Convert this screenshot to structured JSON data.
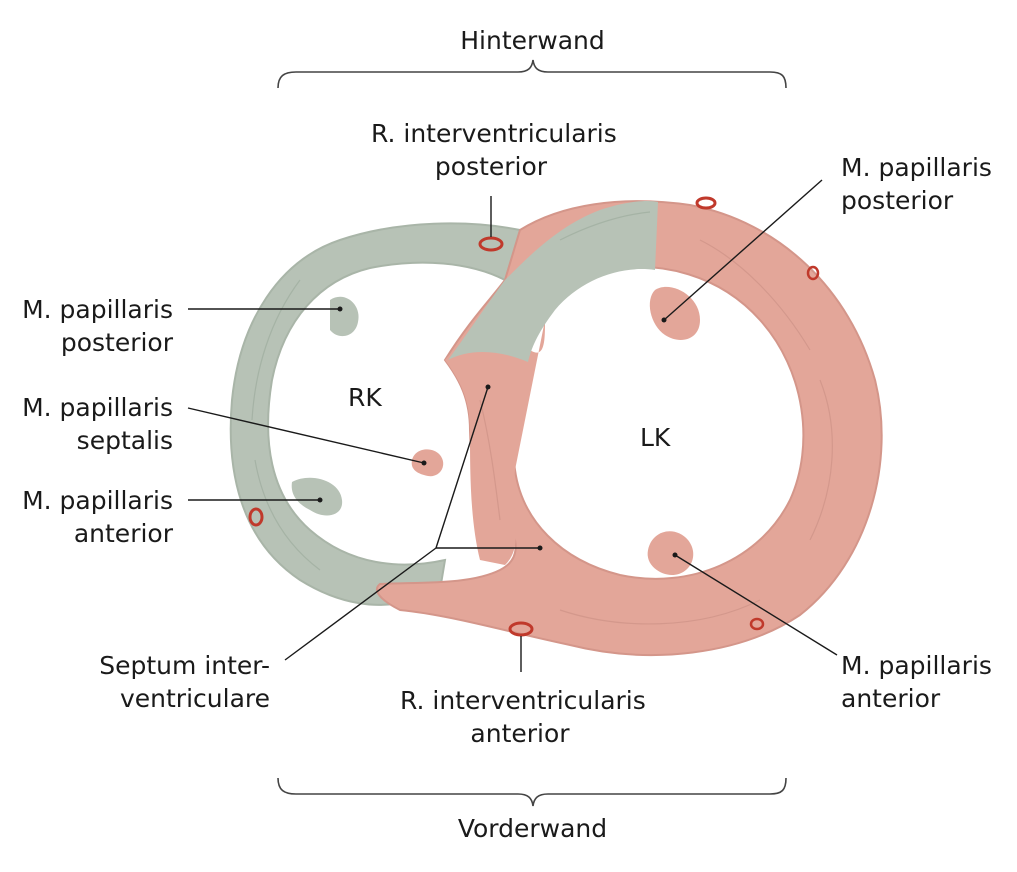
{
  "labels": {
    "hinterwand": "Hinterwand",
    "vorderwand": "Vorderwand",
    "rk": "RK",
    "lk": "LK",
    "rip": [
      "R. interventricularis",
      "posterior"
    ],
    "ria": [
      "R. interventricularis",
      "anterior"
    ],
    "mpp_left": [
      "M. papillaris",
      "posterior"
    ],
    "mps": [
      "M. papillaris",
      "septalis"
    ],
    "mpa_left": [
      "M. papillaris",
      "anterior"
    ],
    "mpp_right": [
      "M. papillaris",
      "posterior"
    ],
    "mpa_right": [
      "M. papillaris",
      "anterior"
    ],
    "septum": [
      "Septum inter-",
      "ventriculare"
    ]
  },
  "colors": {
    "right_ventricle_wall": "#b7c2b6",
    "left_ventricle_wall": "#e3a699",
    "vessel": "#c0392b",
    "leader_line": "#1a1a1a"
  }
}
